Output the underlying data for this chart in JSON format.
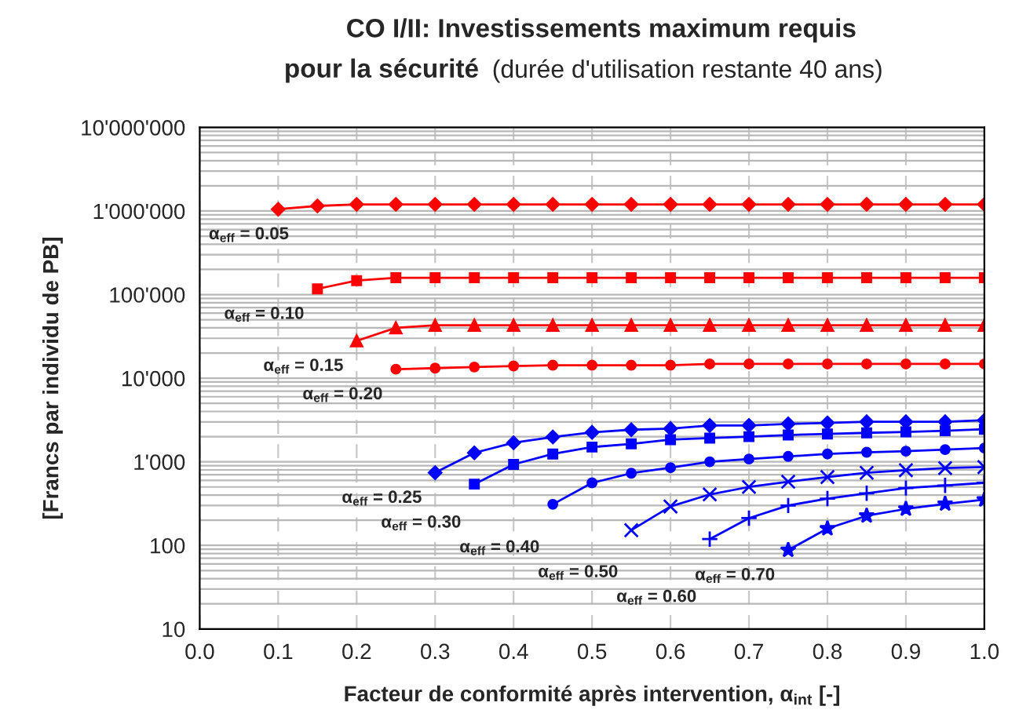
{
  "chart_data": {
    "type": "line",
    "title": "CO I/II: Investissements maximum requis\npour la sécurité",
    "subtitle": "(durée d'utilisation restante 40 ans)",
    "xlabel": "Facteur de conformité après intervention, α$_{int}$ [-]",
    "ylabel": "[Francs par individu de PB]",
    "log": "y",
    "grid": true,
    "legend": false,
    "line_style": "solid",
    "xlim": [
      0,
      1
    ],
    "xticks": [
      {
        "value": 0,
        "label": "0.0"
      },
      0.1,
      0.2,
      0.3,
      0.4,
      0.5,
      0.6,
      0.7,
      0.8,
      0.9,
      {
        "value": 1,
        "label": "1.0"
      }
    ],
    "ylim": [
      10,
      10000000
    ],
    "yticks": [
      10,
      100,
      {
        "value": 1000,
        "label": "1'000"
      },
      {
        "value": 10000,
        "label": "10'000"
      },
      {
        "value": 100000,
        "label": "100'000"
      },
      {
        "value": 1000000,
        "label": "1'000'000"
      },
      {
        "value": 10000000,
        "label": "10'000'000"
      }
    ],
    "series": [
      {
        "name": "α$_{eff}$ = 0.05",
        "color": "#ff0000",
        "marker": "diamond",
        "x": [
          0.1,
          0.15,
          0.2,
          0.25,
          0.3,
          0.35,
          0.4,
          0.45,
          0.5,
          0.55,
          0.6,
          0.65,
          0.7,
          0.75,
          0.8,
          0.85,
          0.9,
          0.95,
          1.0
        ],
        "values": [
          1050000,
          1150000,
          1200000,
          1200000,
          1200000,
          1200000,
          1200000,
          1200000,
          1200000,
          1200000,
          1200000,
          1200000,
          1200000,
          1200000,
          1200000,
          1200000,
          1200000,
          1200000,
          1200000
        ]
      },
      {
        "name": "α$_{eff}$ = 0.10",
        "color": "#ff0000",
        "marker": "square",
        "x": [
          0.15,
          0.2,
          0.25,
          0.3,
          0.35,
          0.4,
          0.45,
          0.5,
          0.55,
          0.6,
          0.65,
          0.7,
          0.75,
          0.8,
          0.85,
          0.9,
          0.95,
          1.0
        ],
        "values": [
          117000,
          147000,
          159000,
          159000,
          159000,
          159000,
          159000,
          159000,
          159000,
          159000,
          159000,
          159000,
          159000,
          159000,
          159000,
          159000,
          159000,
          159000
        ]
      },
      {
        "name": "α$_{eff}$ = 0.15",
        "color": "#ff0000",
        "marker": "triangle",
        "x": [
          0.2,
          0.25,
          0.3,
          0.35,
          0.4,
          0.45,
          0.5,
          0.55,
          0.6,
          0.65,
          0.7,
          0.75,
          0.8,
          0.85,
          0.9,
          0.95,
          1.0
        ],
        "values": [
          28000,
          40000,
          43000,
          43000,
          43000,
          43000,
          43000,
          43000,
          43000,
          43000,
          43000,
          43000,
          43000,
          43000,
          43000,
          43000,
          43000
        ]
      },
      {
        "name": "α$_{eff}$ = 0.20",
        "color": "#ff0000",
        "marker": "circle",
        "x": [
          0.25,
          0.3,
          0.35,
          0.4,
          0.45,
          0.5,
          0.55,
          0.6,
          0.65,
          0.7,
          0.75,
          0.8,
          0.85,
          0.9,
          0.95,
          1.0
        ],
        "values": [
          12800,
          13200,
          13600,
          14000,
          14300,
          14300,
          14300,
          14300,
          14800,
          14800,
          14800,
          14800,
          14800,
          14800,
          14800,
          14800
        ]
      },
      {
        "name": "α$_{eff}$ = 0.25",
        "color": "#0000ff",
        "marker": "diamond",
        "x": [
          0.3,
          0.35,
          0.4,
          0.45,
          0.5,
          0.55,
          0.6,
          0.65,
          0.7,
          0.75,
          0.8,
          0.85,
          0.9,
          0.95,
          1.0
        ],
        "values": [
          740,
          1280,
          1690,
          1980,
          2250,
          2420,
          2490,
          2720,
          2720,
          2840,
          2920,
          3010,
          3010,
          3010,
          3140
        ]
      },
      {
        "name": "α$_{eff}$ = 0.30",
        "color": "#0000ff",
        "marker": "square",
        "x": [
          0.35,
          0.4,
          0.45,
          0.5,
          0.55,
          0.6,
          0.65,
          0.7,
          0.75,
          0.8,
          0.85,
          0.9,
          0.95,
          1.0
        ],
        "values": [
          540,
          930,
          1240,
          1500,
          1640,
          1840,
          1920,
          2000,
          2090,
          2150,
          2220,
          2280,
          2350,
          2450
        ]
      },
      {
        "name": "α$_{eff}$ = 0.40",
        "color": "#0000ff",
        "marker": "circle",
        "x": [
          0.45,
          0.5,
          0.55,
          0.6,
          0.65,
          0.7,
          0.75,
          0.8,
          0.85,
          0.9,
          0.95,
          1.0
        ],
        "values": [
          310,
          560,
          730,
          850,
          1000,
          1080,
          1160,
          1240,
          1300,
          1340,
          1400,
          1460
        ]
      },
      {
        "name": "α$_{eff}$ = 0.50",
        "color": "#0000ff",
        "marker": "cross",
        "x": [
          0.55,
          0.6,
          0.65,
          0.7,
          0.75,
          0.8,
          0.85,
          0.9,
          0.95,
          1.0
        ],
        "values": [
          152,
          292,
          407,
          500,
          578,
          657,
          738,
          793,
          840,
          865
        ]
      },
      {
        "name": "α$_{eff}$ = 0.60",
        "color": "#0000ff",
        "marker": "plus",
        "x": [
          0.65,
          0.7,
          0.75,
          0.8,
          0.85,
          0.9,
          0.95,
          1.0
        ],
        "values": [
          119,
          212,
          300,
          363,
          420,
          485,
          521,
          560
        ]
      },
      {
        "name": "α$_{eff}$ = 0.70",
        "color": "#0000ff",
        "marker": "star",
        "x": [
          0.75,
          0.8,
          0.85,
          0.9,
          0.95,
          1.0
        ],
        "values": [
          88,
          159,
          226,
          273,
          314,
          352
        ]
      }
    ]
  }
}
